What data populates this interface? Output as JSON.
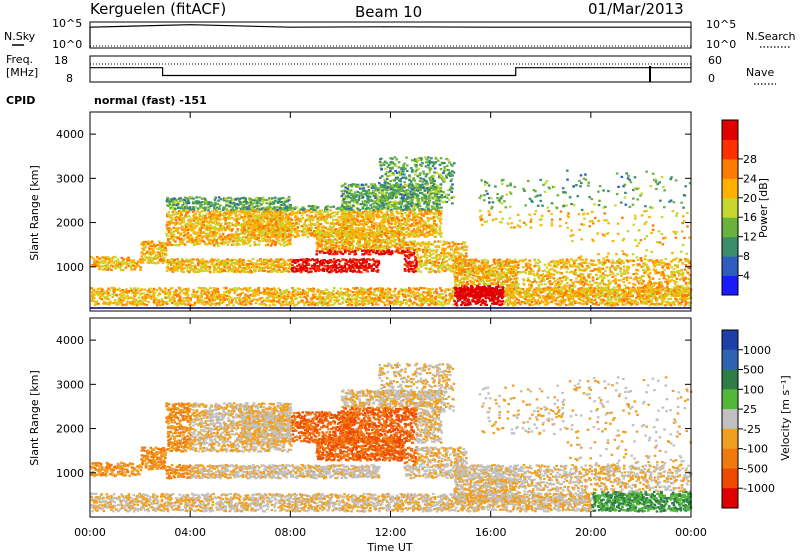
{
  "header": {
    "station": "Kerguelen (fitACF)",
    "beam": "Beam 10",
    "date": "01/Mar/2013"
  },
  "left_labels": {
    "nsky": "N.Sky",
    "freq_line1": "Freq.",
    "freq_line2": "[MHz]",
    "cpid": "CPID"
  },
  "right_labels": {
    "nsearch": "N.Search",
    "nave": "Nave"
  },
  "cpid_text": "normal (fast) -151",
  "x_axis_title": "Time UT",
  "range_axis_title": "Slant Range [km]",
  "power_bar_title": "Power [dB]",
  "velocity_bar_title": "Velocity [m s⁻¹]",
  "chart_data": [
    {
      "type": "line",
      "name": "noise-panel",
      "yticks_left": [
        "10^5",
        "10^0"
      ],
      "yticks_right": [
        "10^5",
        "10^0"
      ],
      "x": [
        "00:00",
        "04:00",
        "08:00",
        "12:00",
        "16:00",
        "20:00",
        "00:00"
      ],
      "series": [
        {
          "name": "N.Sky",
          "style": "solid",
          "values": [
            10000,
            30000,
            10000,
            12000,
            10000,
            10000,
            10000
          ]
        },
        {
          "name": "N.Search",
          "style": "dotted",
          "values": [
            1,
            1,
            1,
            1,
            1,
            1,
            1
          ]
        }
      ]
    },
    {
      "type": "line",
      "name": "freq-nave-panel",
      "yticks_left": [
        "18",
        "8"
      ],
      "yticks_right": [
        "60",
        "0"
      ],
      "x_hours": [
        0,
        2.9,
        2.9,
        17.0,
        17.0,
        24.0
      ],
      "series": [
        {
          "name": "Freq.",
          "style": "solid",
          "values": [
            13.5,
            13.5,
            10.5,
            10.5,
            13.5,
            13.5
          ]
        },
        {
          "name": "Nave",
          "style": "dotted",
          "values": [
            40,
            40,
            40,
            40,
            40,
            40
          ]
        }
      ]
    },
    {
      "type": "heatmap",
      "name": "power-rti",
      "xlabel": "Time UT",
      "ylabel": "Slant Range [km]",
      "xticks": [
        "00:00",
        "04:00",
        "08:00",
        "12:00",
        "16:00",
        "20:00",
        "00:00"
      ],
      "yticks": [
        1000,
        2000,
        3000,
        4000
      ],
      "ylim": [
        0,
        4500
      ],
      "colorbar": {
        "label": "Power [dB]",
        "ticks": [
          4,
          8,
          12,
          16,
          20,
          24,
          28
        ],
        "colors": [
          "#1a1aff",
          "#2e5dbf",
          "#3a8f6a",
          "#69b33d",
          "#c8d630",
          "#ffb000",
          "#ff7a00",
          "#ff3000",
          "#e00000"
        ]
      }
    },
    {
      "type": "heatmap",
      "name": "velocity-rti",
      "xlabel": "Time UT",
      "ylabel": "Slant Range [km]",
      "xticks": [
        "00:00",
        "04:00",
        "08:00",
        "12:00",
        "16:00",
        "20:00",
        "00:00"
      ],
      "yticks": [
        1000,
        2000,
        3000,
        4000
      ],
      "ylim": [
        0,
        4500
      ],
      "colorbar": {
        "label": "Velocity [m s⁻¹]",
        "ticks": [
          1000,
          500,
          100,
          25,
          -25,
          -100,
          -500,
          -1000
        ],
        "colors": [
          "#1f3fa8",
          "#2f62b0",
          "#2e7c48",
          "#52b83a",
          "#c0c0c0",
          "#f0a020",
          "#f07a10",
          "#f04a00",
          "#e00000"
        ]
      }
    }
  ]
}
